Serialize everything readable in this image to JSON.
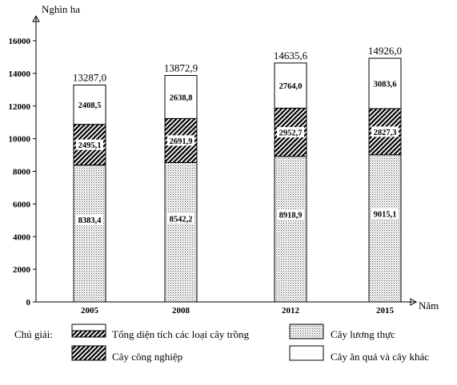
{
  "chart_data": {
    "type": "bar",
    "stacked": true,
    "ylabel": "Nghìn ha",
    "xlabel": "Năm",
    "ylim": [
      0,
      16000
    ],
    "yticks": [
      0,
      2000,
      4000,
      6000,
      8000,
      10000,
      12000,
      14000,
      16000
    ],
    "categories": [
      "2005",
      "2008",
      "2012",
      "2015"
    ],
    "series": [
      {
        "name": "Cây lương thực",
        "pattern": "dots",
        "values": [
          8383.4,
          8542.2,
          8918.9,
          9015.1
        ],
        "labels": [
          "8383,4",
          "8542,2",
          "8918,9",
          "9015,1"
        ]
      },
      {
        "name": "Cây công nghiệp",
        "pattern": "hatch",
        "values": [
          2495.1,
          2691.9,
          2952.7,
          2827.3
        ],
        "labels": [
          "2495,1",
          "2691,9",
          "2952,7",
          "2827,3"
        ]
      },
      {
        "name": "Cây ăn quả và cây khác",
        "pattern": "blank",
        "values": [
          2408.5,
          2638.8,
          2764.0,
          3083.6
        ],
        "labels": [
          "2408,5",
          "2638,8",
          "2764,0",
          "3083,6"
        ]
      }
    ],
    "totals": {
      "values": [
        13287.0,
        13872.9,
        14635.6,
        14926.0
      ],
      "labels": [
        "13287,0",
        "13872,9",
        "14635,6",
        "14926,0"
      ]
    },
    "legend": {
      "title": "Chú giải:",
      "items": [
        {
          "label": "Tổng diện tích các loại cây trồng",
          "pattern": "total"
        },
        {
          "label": "Cây lương thực",
          "pattern": "dots"
        },
        {
          "label": "Cây công nghiệp",
          "pattern": "hatch"
        },
        {
          "label": "Cây ăn quả và cây khác",
          "pattern": "blank"
        }
      ],
      "placement": "bottom"
    },
    "grid": false
  }
}
